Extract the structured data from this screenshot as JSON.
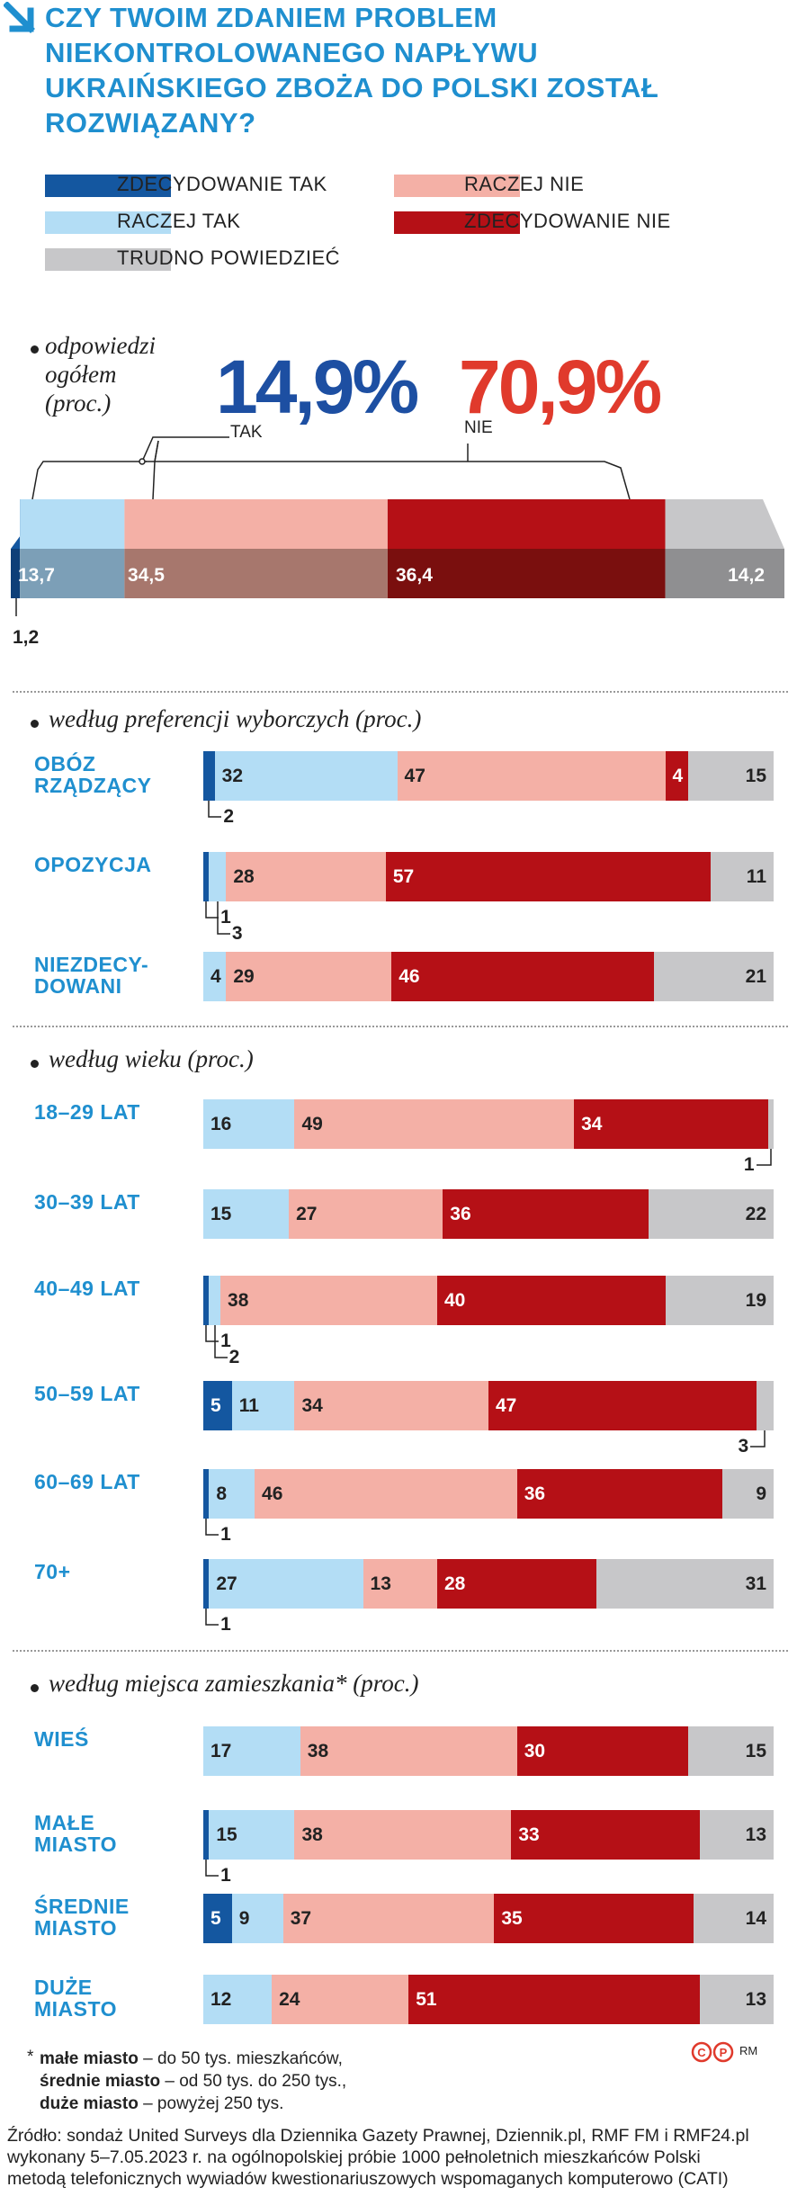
{
  "title": "CZY TWOIM ZDANIEM PROBLEM NIEKONTROLOWANEGO NAPŁYWU UKRAIŃSKIEGO ZBOŻA DO POLSKI ZOSTAŁ ROZWIĄZANY?",
  "colors": {
    "zdecydowanie_tak": "#1457a0",
    "raczej_tak": "#b3ddf5",
    "raczej_nie": "#f4b0a6",
    "zdecydowanie_nie": "#b51016",
    "trudno_powiedziec": "#c7c7c9",
    "label_blue": "#1f8fcf",
    "tak_big": "#1d4fa2",
    "nie_big": "#e03a2c"
  },
  "legend": [
    {
      "key": "zdecydowanie_tak",
      "label": "ZDECYDOWANIE TAK"
    },
    {
      "key": "raczej_nie",
      "label": "RACZEJ NIE"
    },
    {
      "key": "raczej_tak",
      "label": "RACZEJ TAK"
    },
    {
      "key": "zdecydowanie_nie",
      "label": "ZDECYDOWANIE NIE"
    },
    {
      "key": "trudno_powiedziec",
      "label": "TRUDNO POWIEDZIEĆ"
    }
  ],
  "overall": {
    "heading_line1": "odpowiedzi",
    "heading_line2": "ogółem",
    "heading_line3": "(proc.)",
    "tak_total": "14,9%",
    "tak_label": "TAK",
    "nie_total": "70,9%",
    "nie_label": "NIE"
  },
  "sections": {
    "preferences": "według preferencji wyborczych (proc.)",
    "age": "według wieku (proc.)",
    "residence": "według miejsca zamieszkania* (proc.)"
  },
  "chart_data": {
    "type": "bar",
    "stacked": true,
    "orientation": "horizontal",
    "title": "CZY TWOIM ZDANIEM PROBLEM NIEKONTROLOWANEGO NAPŁYWU UKRAIŃSKIEGO ZBOŻA DO POLSKI ZOSTAŁ ROZWIĄZANY?",
    "unit": "proc.",
    "series_names": [
      "ZDECYDOWANIE TAK",
      "RACZEJ TAK",
      "RACZEJ NIE",
      "ZDECYDOWANIE NIE",
      "TRUDNO POWIEDZIEĆ"
    ],
    "overall": {
      "values": [
        1.2,
        13.7,
        34.5,
        36.4,
        14.2
      ],
      "labels": [
        "1,2",
        "13,7",
        "34,5",
        "36,4",
        "14,2"
      ]
    },
    "groups": [
      {
        "section": "preferences",
        "rows": [
          {
            "label": "OBÓZ RZĄDZĄCY",
            "values": [
              2,
              32,
              47,
              4,
              15
            ]
          },
          {
            "label": "OPOZYCJA",
            "values": [
              1,
              3,
              28,
              57,
              11
            ]
          },
          {
            "label": "NIEZDECY- DOWANI",
            "values": [
              0,
              4,
              29,
              46,
              21
            ]
          }
        ]
      },
      {
        "section": "age",
        "rows": [
          {
            "label": "18–29 LAT",
            "values": [
              0,
              16,
              49,
              34,
              1
            ]
          },
          {
            "label": "30–39 LAT",
            "values": [
              0,
              15,
              27,
              36,
              22
            ]
          },
          {
            "label": "40–49 LAT",
            "values": [
              1,
              2,
              38,
              40,
              19
            ]
          },
          {
            "label": "50–59 LAT",
            "values": [
              5,
              11,
              34,
              47,
              3
            ]
          },
          {
            "label": "60–69 LAT",
            "values": [
              1,
              8,
              46,
              36,
              9
            ]
          },
          {
            "label": "70+",
            "values": [
              1,
              27,
              13,
              28,
              31
            ]
          }
        ]
      },
      {
        "section": "residence",
        "rows": [
          {
            "label": "WIEŚ",
            "values": [
              0,
              17,
              38,
              30,
              15
            ]
          },
          {
            "label": "MAŁE MIASTO",
            "values": [
              1,
              15,
              38,
              33,
              13
            ]
          },
          {
            "label": "ŚREDNIE MIASTO",
            "values": [
              5,
              9,
              37,
              35,
              14
            ]
          },
          {
            "label": "DUŻE MIASTO",
            "values": [
              0,
              12,
              24,
              51,
              13
            ]
          }
        ]
      }
    ]
  },
  "footnote": {
    "mark": "*",
    "lines": [
      {
        "term": "małe miasto",
        "text": " – do 50 tys. mieszkańców,"
      },
      {
        "term": "średnie miasto",
        "text": " – od 50 tys. do 250 tys.,"
      },
      {
        "term": "duże miasto",
        "text": " – powyżej 250 tys."
      }
    ]
  },
  "logo_text": "RM",
  "source": {
    "line1": "Źródło: sondaż United Surveys dla Dziennika Gazety Prawnej, Dziennik.pl, RMF FM i RMF24.pl",
    "line2": "wykonany 5–7.05.2023 r. na ogólnopolskiej próbie 1000 pełnoletnich mieszkańców Polski",
    "line3": "metodą telefonicznych wywiadów kwestionariuszowych wspomaganych komputerowo (CATI)"
  }
}
